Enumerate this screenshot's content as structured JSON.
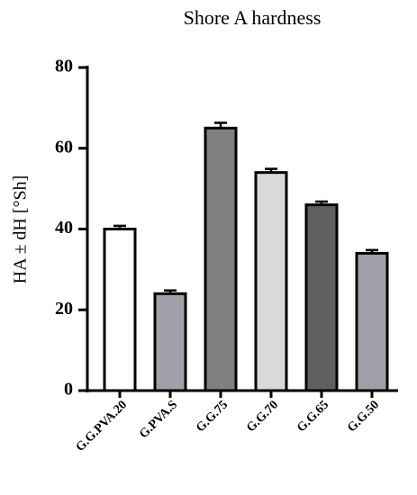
{
  "chart_data": {
    "type": "bar",
    "title": "Shore A hardness",
    "y_label": "HA ± dH [°Sh]",
    "categories": [
      "G.G.PVA.20",
      "G.PVA.S",
      "G.G.75",
      "G.G.70",
      "G.G.65",
      "G.G.50"
    ],
    "values": [
      40,
      24,
      65,
      54,
      46,
      34
    ],
    "errors": [
      0.8,
      0.8,
      1.3,
      0.9,
      0.8,
      0.8
    ],
    "colors": [
      "#ffffff",
      "#a0a0a8",
      "#808080",
      "#d9d9d9",
      "#606060",
      "#a0a0a8"
    ],
    "ylim": [
      0,
      80
    ],
    "yticks": [
      0,
      20,
      40,
      60,
      80
    ],
    "grid": false
  }
}
